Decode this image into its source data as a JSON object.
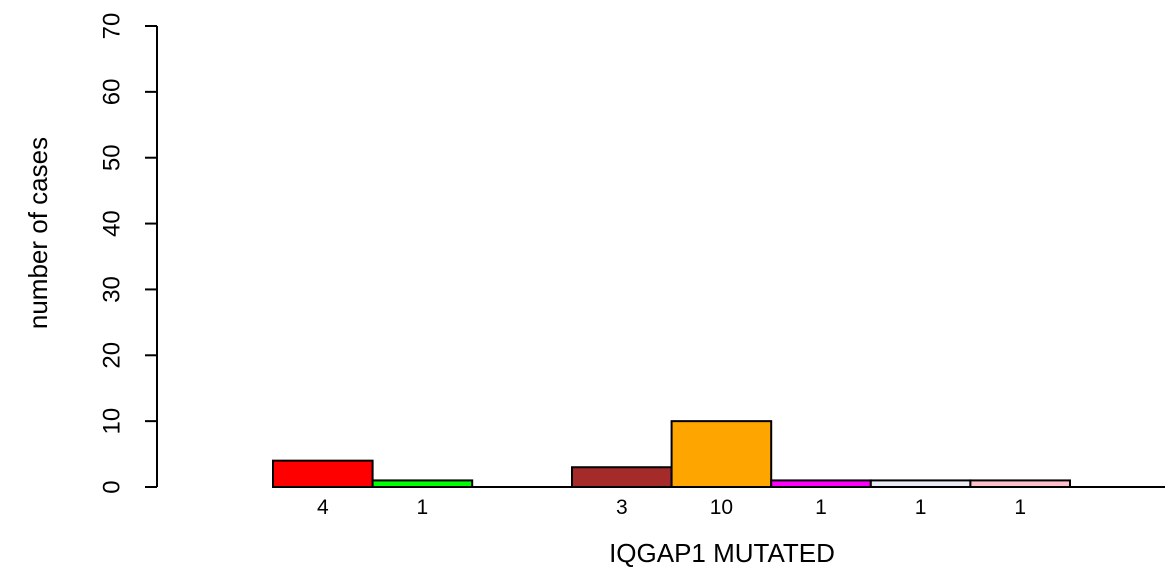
{
  "chart_data": {
    "type": "bar",
    "title": "",
    "xlabel": "IQGAP1 MUTATED",
    "ylabel": "number of cases",
    "ylim": [
      0,
      70
    ],
    "yticks": [
      0,
      10,
      20,
      30,
      40,
      50,
      60,
      70
    ],
    "grid": false,
    "legend": "none",
    "groups": [
      {
        "bars": [
          {
            "value": 4,
            "label": "4",
            "color": "#ff0000"
          },
          {
            "value": 1,
            "label": "1",
            "color": "#00ff00"
          }
        ]
      },
      {
        "bars": [
          {
            "value": 3,
            "label": "3",
            "color": "#a52a2a"
          },
          {
            "value": 10,
            "label": "10",
            "color": "#ffa500"
          },
          {
            "value": 1,
            "label": "1",
            "color": "#ff00ff"
          },
          {
            "value": 1,
            "label": "1",
            "color": "#ebebf5"
          },
          {
            "value": 1,
            "label": "1",
            "color": "#ffc0cb"
          }
        ]
      }
    ]
  }
}
